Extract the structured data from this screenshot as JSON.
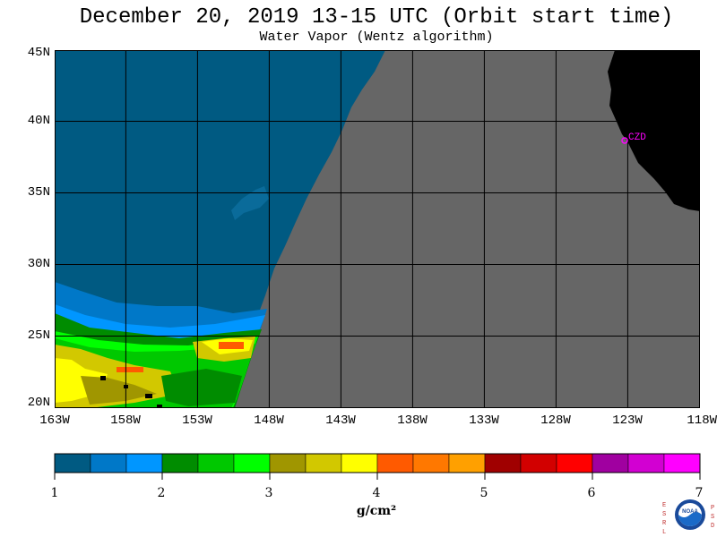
{
  "title": "December 20, 2019  13-15 UTC  (Orbit start time)",
  "subtitle": "Water Vapor (Wentz algorithm)",
  "lat_labels": [
    "45N",
    "40N",
    "35N",
    "30N",
    "25N",
    "20N"
  ],
  "lon_labels": [
    "163W",
    "158W",
    "153W",
    "148W",
    "143W",
    "138W",
    "133W",
    "128W",
    "123W",
    "118W"
  ],
  "station_label": "CZD",
  "colorbar": {
    "tick_labels": [
      "1",
      "2",
      "3",
      "4",
      "5",
      "6",
      "7"
    ],
    "units": "g/cm²",
    "colors": [
      "#005a82",
      "#0078c8",
      "#0096ff",
      "#008c00",
      "#00c800",
      "#00ff00",
      "#a09600",
      "#d2c800",
      "#ffff00",
      "#ff5a00",
      "#ff7800",
      "#ffa000",
      "#a00000",
      "#d20000",
      "#ff0000",
      "#a000a0",
      "#d200d2",
      "#ff00ff"
    ]
  },
  "logo": {
    "left_letters": "ESRL",
    "right_letters": "PSD",
    "center_text": "NOAA"
  },
  "map_colors": {
    "no_data": "#666666",
    "land": "#000000",
    "ocean_dry": "#005a82",
    "grid": "#000000",
    "station": "#ff00ff"
  }
}
